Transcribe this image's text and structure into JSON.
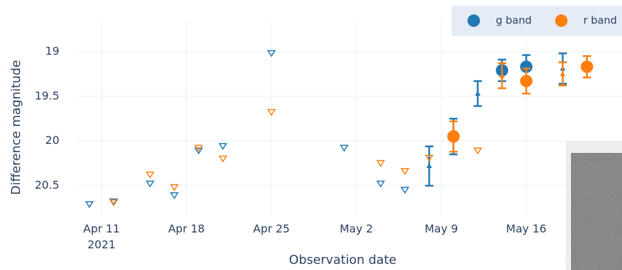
{
  "chart_data": {
    "type": "lightcurve",
    "x_title": "Observation date",
    "y_title": "Difference magnitude",
    "xlim": [
      "2021-04-09",
      "2021-05-24"
    ],
    "xticks": [
      {
        "value": "2021-04-11",
        "label": "Apr 11"
      },
      {
        "value": "2021-04-18",
        "label": "Apr 18"
      },
      {
        "value": "2021-04-25",
        "label": "Apr 25"
      },
      {
        "value": "2021-05-02",
        "label": "May 2"
      },
      {
        "value": "2021-05-09",
        "label": "May 9"
      },
      {
        "value": "2021-05-16",
        "label": "May 16"
      }
    ],
    "x_year_label": "2021",
    "ylim": [
      18.77,
      20.85
    ],
    "y_reversed": true,
    "yticks": [
      19,
      19.5,
      20,
      20.5
    ],
    "grid": true,
    "legend": "top-right",
    "series": [
      {
        "name": "g band",
        "color": "#1f77b4",
        "detections": {
          "x": [
            "2021-05-10",
            "2021-05-14",
            "2021-05-16"
          ],
          "values": [
            19.95,
            19.21,
            19.17
          ],
          "errors": [
            0.2,
            0.12,
            0.13
          ]
        },
        "small_detections": {
          "x": [
            "2021-05-08",
            "2021-05-12",
            "2021-05-19"
          ],
          "values": [
            20.28,
            19.47,
            19.19
          ],
          "errors": [
            0.22,
            0.14,
            0.17
          ]
        },
        "upper_limits": {
          "x": [
            "2021-04-10",
            "2021-04-12",
            "2021-04-15",
            "2021-04-17",
            "2021-04-19",
            "2021-04-21",
            "2021-04-25",
            "2021-05-01",
            "2021-05-04",
            "2021-05-06"
          ],
          "values": [
            20.71,
            20.68,
            20.48,
            20.61,
            20.11,
            20.06,
            19.02,
            20.08,
            20.48,
            20.55
          ]
        }
      },
      {
        "name": "r band",
        "color": "#ff7f0e",
        "detections": {
          "x": [
            "2021-05-10",
            "2021-05-16",
            "2021-05-21"
          ],
          "values": [
            19.95,
            19.33,
            19.17
          ],
          "errors": [
            0.17,
            0.14,
            0.12
          ]
        },
        "small_detections": {
          "x": [
            "2021-05-14",
            "2021-05-19"
          ],
          "values": [
            19.27,
            19.25
          ],
          "errors": [
            0.14,
            0.13
          ]
        },
        "upper_limits": {
          "x": [
            "2021-04-12",
            "2021-04-15",
            "2021-04-17",
            "2021-04-19",
            "2021-04-21",
            "2021-04-25",
            "2021-05-04",
            "2021-05-06",
            "2021-05-08",
            "2021-05-12"
          ],
          "values": [
            20.69,
            20.38,
            20.52,
            20.08,
            20.2,
            19.68,
            20.25,
            20.34,
            20.19,
            20.11
          ]
        }
      }
    ]
  }
}
